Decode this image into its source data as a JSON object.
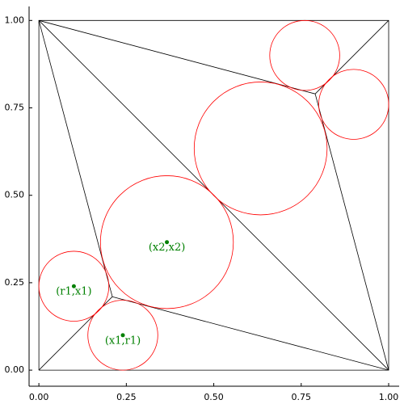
{
  "chart_data": {
    "type": "geometry",
    "xlim": [
      -0.028,
      1.03
    ],
    "ylim": [
      -0.046,
      1.04
    ],
    "xticks": [
      {
        "value": 0,
        "label": "0.00"
      },
      {
        "value": 0.25,
        "label": "0.25"
      },
      {
        "value": 0.5,
        "label": "0.50"
      },
      {
        "value": 0.75,
        "label": "0.75"
      },
      {
        "value": 1,
        "label": "1.00"
      }
    ],
    "yticks": [
      {
        "value": 0,
        "label": "0.00"
      },
      {
        "value": 0.25,
        "label": "0.25"
      },
      {
        "value": 0.5,
        "label": "0.50"
      },
      {
        "value": 0.75,
        "label": "0.75"
      },
      {
        "value": 1,
        "label": "1.00"
      }
    ],
    "grid": false,
    "line_color": "#000000",
    "circle_color": "#ff0000",
    "point_color": "#008000",
    "segments": [
      {
        "x": [
          0,
          1,
          1,
          0,
          0
        ],
        "y": [
          0,
          0,
          1,
          1,
          0
        ]
      },
      {
        "x": [
          0,
          1
        ],
        "y": [
          1,
          0
        ]
      },
      {
        "x": [
          0,
          0.21
        ],
        "y": [
          0,
          0.21
        ]
      },
      {
        "x": [
          0,
          0.21
        ],
        "y": [
          1,
          0.21
        ]
      },
      {
        "x": [
          1,
          0.21
        ],
        "y": [
          0,
          0.21
        ]
      },
      {
        "x": [
          1,
          0.79
        ],
        "y": [
          1,
          0.79
        ]
      },
      {
        "x": [
          0,
          0.79
        ],
        "y": [
          1,
          0.79
        ]
      },
      {
        "x": [
          1,
          0.79
        ],
        "y": [
          0,
          0.79
        ]
      }
    ],
    "circles": [
      {
        "x": 0.366,
        "y": 0.366,
        "r": 0.19
      },
      {
        "x": 0.1,
        "y": 0.24,
        "r": 0.1
      },
      {
        "x": 0.24,
        "y": 0.1,
        "r": 0.1
      },
      {
        "x": 0.634,
        "y": 0.634,
        "r": 0.19
      },
      {
        "x": 0.76,
        "y": 0.9,
        "r": 0.1
      },
      {
        "x": 0.9,
        "y": 0.76,
        "r": 0.1
      }
    ],
    "points": [
      {
        "x": 0.366,
        "y": 0.366,
        "label": "(x2,x2)"
      },
      {
        "x": 0.1,
        "y": 0.24,
        "label": "(r1,x1)"
      },
      {
        "x": 0.24,
        "y": 0.1,
        "label": "(x1,r1)"
      }
    ]
  }
}
